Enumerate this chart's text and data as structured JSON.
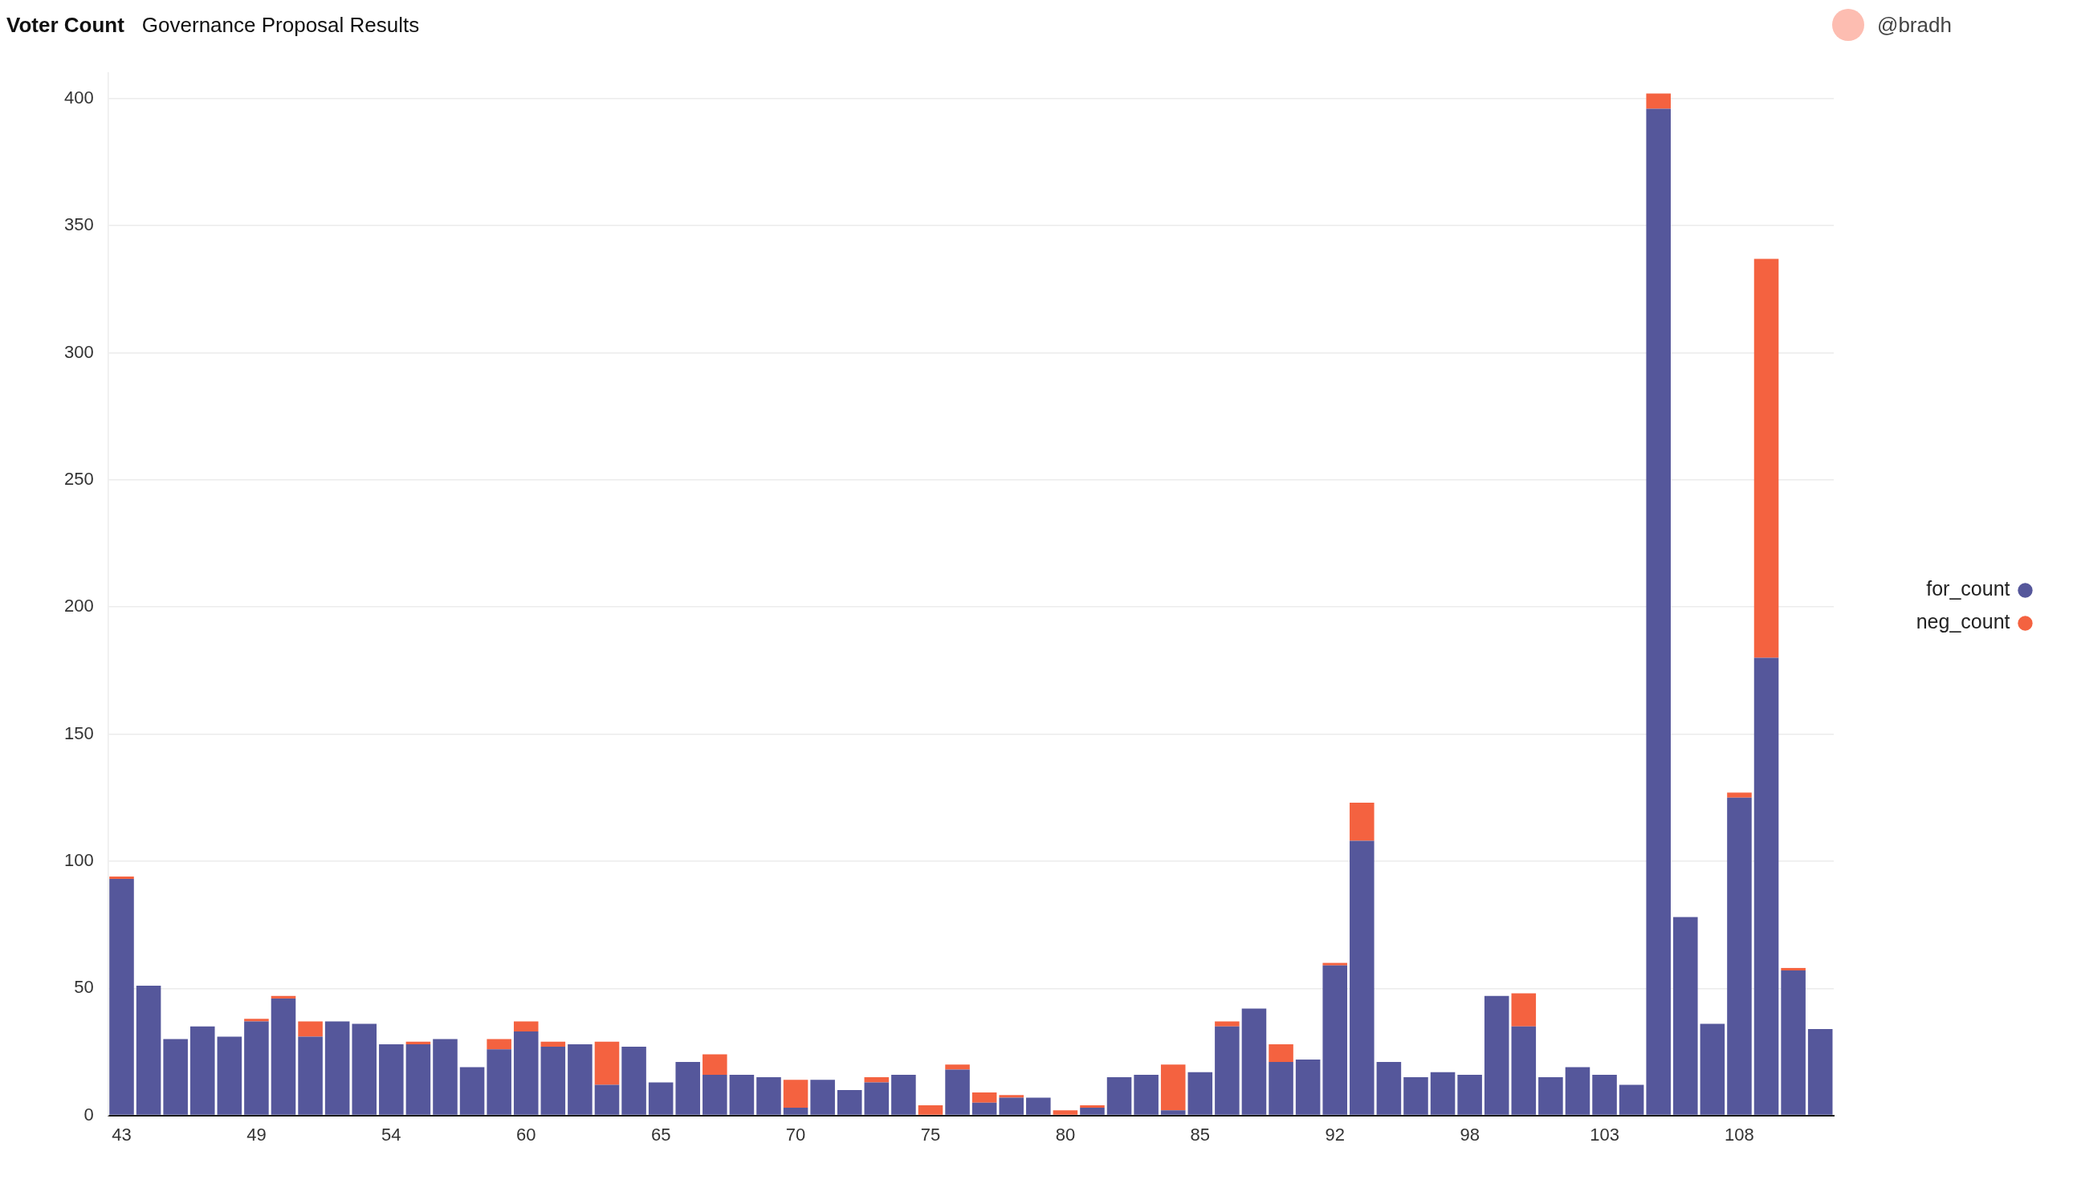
{
  "chart_data": {
    "type": "bar",
    "title": "Voter Count",
    "subtitle": "Governance Proposal Results",
    "annotations": [
      "@bradh"
    ],
    "categories": [
      "43",
      null,
      null,
      null,
      null,
      "49",
      null,
      null,
      null,
      null,
      "54",
      null,
      null,
      null,
      null,
      "60",
      null,
      null,
      null,
      null,
      "65",
      null,
      null,
      null,
      null,
      "70",
      null,
      null,
      null,
      null,
      "75",
      null,
      null,
      null,
      null,
      "80",
      null,
      null,
      null,
      null,
      "85",
      null,
      null,
      null,
      null,
      "92",
      null,
      null,
      null,
      null,
      "98",
      null,
      null,
      null,
      null,
      "103",
      null,
      null,
      null,
      null,
      "108",
      null,
      null,
      null
    ],
    "series": [
      {
        "name": "for_count",
        "color": "#55579b",
        "values": [
          93,
          51,
          30,
          35,
          31,
          37,
          46,
          31,
          37,
          36,
          28,
          28,
          30,
          19,
          26,
          33,
          27,
          28,
          12,
          27,
          13,
          21,
          16,
          16,
          15,
          3,
          14,
          10,
          13,
          16,
          0,
          18,
          5,
          7,
          7,
          0,
          3,
          15,
          16,
          2,
          17,
          35,
          42,
          21,
          22,
          59,
          108,
          21,
          15,
          17,
          16,
          47,
          35,
          15,
          19,
          16,
          12,
          396,
          78,
          36,
          125,
          180,
          57,
          34
        ]
      },
      {
        "name": "neg_count",
        "color": "#f46240",
        "values": [
          1,
          0,
          0,
          0,
          0,
          1,
          1,
          6,
          0,
          0,
          0,
          1,
          0,
          0,
          4,
          4,
          2,
          0,
          17,
          0,
          0,
          0,
          8,
          0,
          0,
          11,
          0,
          0,
          2,
          0,
          4,
          2,
          4,
          1,
          0,
          2,
          1,
          0,
          0,
          18,
          0,
          2,
          0,
          7,
          0,
          1,
          15,
          0,
          0,
          0,
          0,
          0,
          13,
          0,
          0,
          0,
          0,
          6,
          0,
          0,
          2,
          157,
          1,
          0
        ]
      }
    ],
    "stacked": true,
    "ylim": [
      0,
      410
    ],
    "yticks": [
      0,
      50,
      100,
      150,
      200,
      250,
      300,
      350,
      400
    ],
    "grid": "y",
    "legend": "right"
  }
}
